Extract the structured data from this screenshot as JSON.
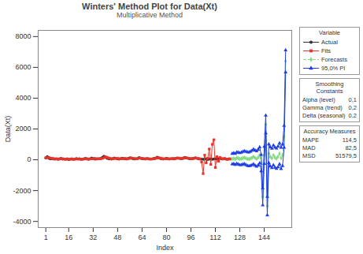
{
  "chart_data": {
    "type": "line",
    "title": "Winters' Method Plot for Data(Xt)",
    "subtitle": "Multiplicative Method",
    "x_label": "Index",
    "y_label": "Data(Xt)",
    "xlim": [
      -4,
      162
    ],
    "xticks": [
      1,
      16,
      32,
      48,
      64,
      80,
      96,
      112,
      128,
      144
    ],
    "ylim": [
      -4400,
      8400
    ],
    "yticks": [
      -4000,
      -2000,
      0,
      2000,
      4000,
      6000,
      8000
    ],
    "grid": false,
    "legend": "right",
    "legend_title": "Variable",
    "series": [
      {
        "name": "Actual",
        "color": "#333333",
        "marker": "circle",
        "line_style": "solid",
        "x": [
          1,
          2,
          3,
          4,
          5,
          6,
          7,
          8,
          9,
          10,
          11,
          12,
          13,
          14,
          15,
          16,
          17,
          18,
          19,
          20,
          21,
          22,
          23,
          24,
          25,
          26,
          27,
          28,
          29,
          30,
          31,
          32,
          33,
          34,
          35,
          36,
          37,
          38,
          39,
          40,
          41,
          42,
          43,
          44,
          45,
          46,
          47,
          48,
          49,
          50,
          51,
          52,
          53,
          54,
          55,
          56,
          57,
          58,
          59,
          60,
          61,
          62,
          63,
          64,
          65,
          66,
          67,
          68,
          69,
          70,
          71,
          72,
          73,
          74,
          75,
          76,
          77,
          78,
          79,
          80,
          81,
          82,
          83,
          84,
          85,
          86,
          87,
          88,
          89,
          90,
          91,
          92,
          93,
          94,
          95,
          96,
          97,
          98,
          99,
          100,
          101,
          102,
          103,
          104,
          105,
          106,
          107,
          108,
          109,
          110,
          111,
          112,
          113,
          114,
          115,
          116,
          117,
          118,
          119,
          120,
          121,
          122
        ],
        "values": [
          120,
          210,
          90,
          60,
          80,
          50,
          40,
          70,
          30,
          60,
          90,
          40,
          50,
          30,
          60,
          20,
          40,
          70,
          30,
          50,
          80,
          40,
          60,
          30,
          40,
          60,
          90,
          50,
          30,
          70,
          110,
          80,
          50,
          40,
          60,
          70,
          90,
          150,
          230,
          180,
          100,
          70,
          60,
          50,
          80,
          120,
          90,
          60,
          40,
          70,
          100,
          80,
          60,
          50,
          90,
          130,
          110,
          70,
          50,
          60,
          80,
          140,
          100,
          70,
          60,
          50,
          80,
          60,
          40,
          50,
          70,
          90,
          110,
          170,
          120,
          80,
          60,
          50,
          70,
          90,
          60,
          50,
          70,
          80,
          60,
          90,
          120,
          100,
          80,
          70,
          110,
          150,
          120,
          90,
          70,
          60,
          80,
          100,
          130,
          90,
          60,
          50,
          40,
          30,
          60,
          50,
          20,
          40,
          60,
          30,
          50,
          70,
          40,
          60,
          90,
          60,
          50,
          70,
          40,
          30,
          60,
          50
        ]
      },
      {
        "name": "Fits",
        "color": "#e8332a",
        "marker": "square",
        "line_style": "solid",
        "x": [
          1,
          2,
          3,
          4,
          5,
          6,
          7,
          8,
          9,
          10,
          11,
          12,
          13,
          14,
          15,
          16,
          17,
          18,
          19,
          20,
          21,
          22,
          23,
          24,
          25,
          26,
          27,
          28,
          29,
          30,
          31,
          32,
          33,
          34,
          35,
          36,
          37,
          38,
          39,
          40,
          41,
          42,
          43,
          44,
          45,
          46,
          47,
          48,
          49,
          50,
          51,
          52,
          53,
          54,
          55,
          56,
          57,
          58,
          59,
          60,
          61,
          62,
          63,
          64,
          65,
          66,
          67,
          68,
          69,
          70,
          71,
          72,
          73,
          74,
          75,
          76,
          77,
          78,
          79,
          80,
          81,
          82,
          83,
          84,
          85,
          86,
          87,
          88,
          89,
          90,
          91,
          92,
          93,
          94,
          95,
          96,
          97,
          98,
          99,
          100,
          101,
          102,
          103,
          104,
          105,
          106,
          107,
          108,
          109,
          110,
          111,
          112,
          113,
          114,
          115,
          116,
          117,
          118,
          119,
          120,
          121,
          122
        ],
        "values": [
          130,
          140,
          150,
          110,
          90,
          80,
          60,
          50,
          60,
          50,
          60,
          70,
          50,
          50,
          40,
          50,
          40,
          40,
          50,
          40,
          50,
          60,
          50,
          50,
          40,
          50,
          60,
          70,
          60,
          50,
          60,
          80,
          90,
          70,
          60,
          60,
          70,
          90,
          130,
          190,
          160,
          120,
          90,
          70,
          60,
          80,
          100,
          90,
          70,
          60,
          70,
          90,
          80,
          70,
          70,
          90,
          110,
          100,
          80,
          60,
          70,
          100,
          110,
          90,
          70,
          60,
          70,
          70,
          60,
          50,
          60,
          70,
          90,
          120,
          130,
          110,
          80,
          60,
          60,
          70,
          70,
          60,
          60,
          70,
          70,
          80,
          100,
          110,
          100,
          80,
          90,
          120,
          130,
          110,
          90,
          70,
          70,
          90,
          110,
          100,
          80,
          60,
          -150,
          -900,
          300,
          -200,
          100,
          700,
          -300,
          1000,
          1300,
          -500,
          200,
          -100,
          150,
          80,
          60,
          90,
          50,
          40,
          50,
          60
        ]
      },
      {
        "name": "Forecasts",
        "color": "#88d888",
        "marker": "diamond",
        "line_style": "dashed",
        "x": [
          123,
          124,
          125,
          126,
          127,
          128,
          129,
          130,
          131,
          132,
          133,
          134,
          135,
          136,
          137,
          138,
          139,
          140,
          141,
          142,
          143,
          144,
          145,
          146,
          147,
          148,
          149,
          150,
          151,
          152,
          153,
          154,
          155,
          156,
          157,
          158
        ],
        "values": [
          60,
          80,
          40,
          120,
          90,
          50,
          70,
          110,
          150,
          100,
          60,
          40,
          80,
          130,
          200,
          120,
          60,
          150,
          300,
          -200,
          -2400,
          300,
          2300,
          -3000,
          400,
          200,
          100,
          300,
          150,
          80,
          200,
          400,
          100,
          300,
          1500,
          6400
        ]
      },
      {
        "name": "95,0% PI",
        "color": "#1f3fe0",
        "marker": "triangle",
        "line_style": "solid",
        "x": [
          123,
          124,
          125,
          126,
          127,
          128,
          129,
          130,
          131,
          132,
          133,
          134,
          135,
          136,
          137,
          138,
          139,
          140,
          141,
          142,
          143,
          144,
          145,
          146,
          147,
          148,
          149,
          150,
          151,
          152,
          153,
          154,
          155,
          156,
          157,
          158
        ],
        "lower": [
          -280,
          -270,
          -320,
          -250,
          -290,
          -340,
          -330,
          -300,
          -270,
          -330,
          -380,
          -410,
          -380,
          -340,
          -280,
          -370,
          -440,
          -360,
          -220,
          -730,
          -2950,
          -260,
          1720,
          -3600,
          -210,
          -420,
          -530,
          -340,
          -500,
          -580,
          -470,
          -280,
          -590,
          -400,
          790,
          5680
        ],
        "upper": [
          400,
          430,
          400,
          490,
          470,
          440,
          470,
          520,
          570,
          530,
          500,
          490,
          540,
          600,
          680,
          610,
          560,
          660,
          820,
          330,
          -1850,
          860,
          2880,
          -2400,
          1010,
          820,
          730,
          940,
          800,
          740,
          870,
          1080,
          790,
          1000,
          2210,
          7120
        ]
      }
    ],
    "smoothing_constants": {
      "title": "Smoothing Constants",
      "items": [
        {
          "name": "Alpha (level)",
          "value": 0.1,
          "label": "0,1"
        },
        {
          "name": "Gamma (trend)",
          "value": 0.2,
          "label": "0,2"
        },
        {
          "name": "Delta (seasonal)",
          "value": 0.2,
          "label": "0,2"
        }
      ]
    },
    "accuracy_measures": {
      "title": "Accuracy Measures",
      "items": [
        {
          "name": "MAPE",
          "value": 114.5,
          "label": "114,5"
        },
        {
          "name": "MAD",
          "value": 82.5,
          "label": "82,5"
        },
        {
          "name": "MSD",
          "value": 51579.5,
          "label": "51579,5"
        }
      ]
    }
  }
}
